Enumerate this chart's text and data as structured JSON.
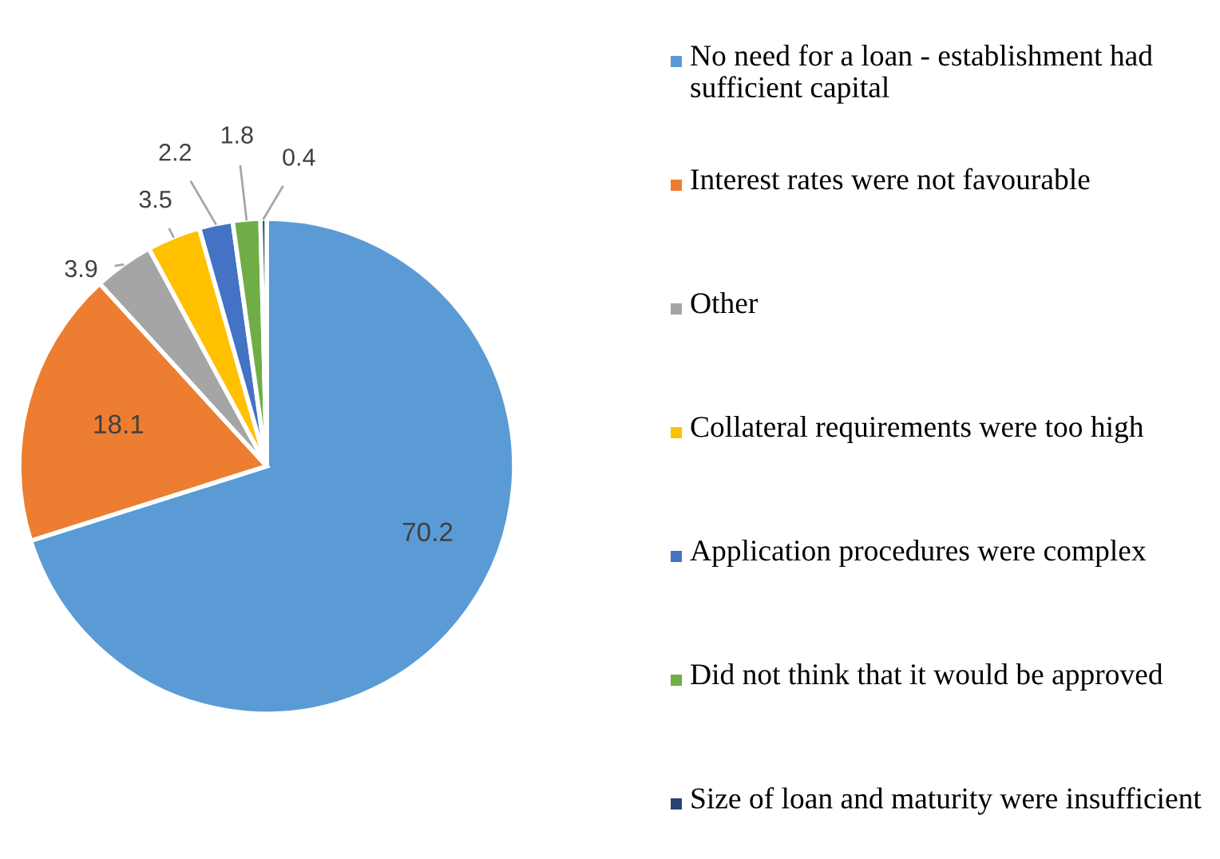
{
  "chart_data": {
    "type": "pie",
    "categories": [
      "No need for a loan - establishment had sufficient capital",
      "Interest rates were not favourable",
      "Other",
      "Collateral requirements were too high",
      "Application procedures were complex",
      "Did not think that it would be approved",
      "Size of loan and maturity were insufficient"
    ],
    "values": [
      70.2,
      18.1,
      3.9,
      3.5,
      2.2,
      1.8,
      0.4
    ],
    "colors": [
      "#5b9bd5",
      "#ed7d31",
      "#a5a5a5",
      "#ffc000",
      "#4472c4",
      "#70ad47",
      "#264478"
    ],
    "data_labels": true,
    "legend": "right"
  }
}
